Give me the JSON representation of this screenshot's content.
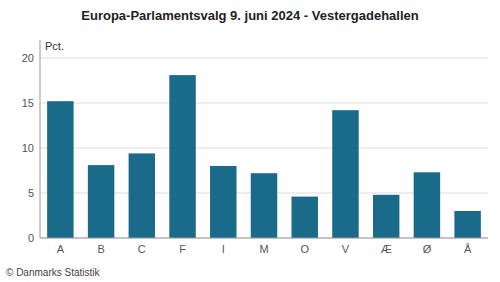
{
  "chart_data": {
    "type": "bar",
    "title": "Europa-Parlamentsvalg 9. juni 2024 - Vestergadehallen",
    "categories": [
      "A",
      "B",
      "C",
      "F",
      "I",
      "M",
      "O",
      "V",
      "Æ",
      "Ø",
      "Å"
    ],
    "values": [
      15.2,
      8.1,
      9.4,
      18.1,
      8.0,
      7.2,
      4.6,
      14.2,
      4.8,
      7.3,
      3.0
    ],
    "color": "#1a6b8a",
    "y_label": "Pct.",
    "footnote": "© Danmarks Statistik",
    "ylim": [
      0,
      22
    ],
    "yticks": [
      0,
      5,
      10,
      15,
      20
    ],
    "grid": true
  }
}
